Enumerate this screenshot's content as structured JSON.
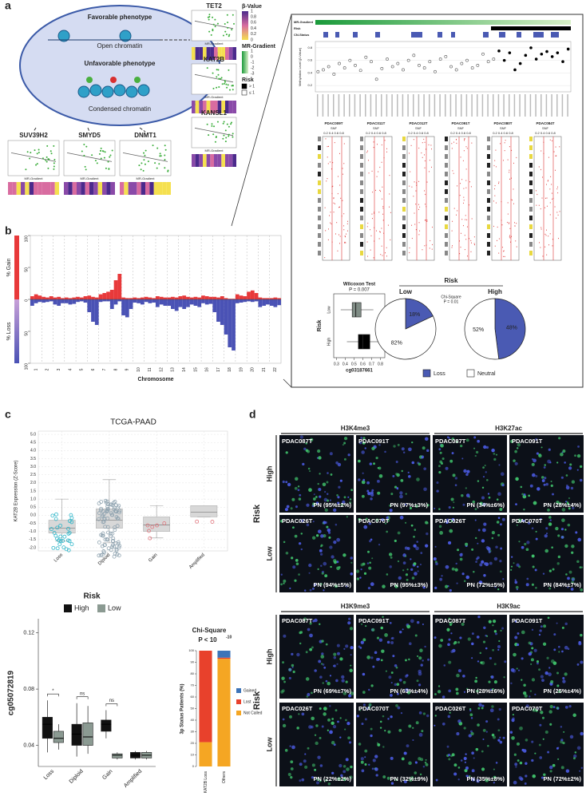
{
  "panel_a": {
    "label": "a",
    "favorable": "Favorable phenotype",
    "open": "Open chromatin",
    "unfavorable": "Unfavorable phenotype",
    "condensed": "Condensed chromatin",
    "genes_bottom": [
      "SUV39H2",
      "SMYD5",
      "DNMT1"
    ],
    "genes_right": [
      "TET2",
      "KAT2B",
      "KANSL1"
    ],
    "mini_xlabel": "MR-Gradient",
    "beta_title": "β-Value",
    "beta_ticks": [
      1,
      0.8,
      0.6,
      0.4,
      0.2,
      0
    ],
    "mr_title": "MR-Gradient",
    "mr_ticks": [
      1,
      0,
      -1,
      -2,
      -3
    ],
    "risk_title": "Risk",
    "risk_items": [
      "> 1",
      "≤ 1"
    ]
  },
  "panel_a_right": {
    "tracks": [
      "MR-Gradient",
      "Risk",
      "CN-Status"
    ],
    "meth_ylabel": "Methylation Level (β-Value)",
    "meth_ylim": [
      0.1,
      0.9
    ],
    "meth_yticks": [
      0.8,
      0.6,
      0.4,
      0.2
    ],
    "methylation_low": [
      0.42,
      0.45,
      0.5,
      0.38,
      0.55,
      0.48,
      0.6,
      0.52,
      0.44,
      0.65,
      0.58,
      0.3,
      0.47,
      0.62,
      0.5,
      0.55,
      0.45,
      0.6,
      0.68,
      0.52,
      0.48,
      0.58,
      0.42,
      0.62,
      0.66,
      0.5,
      0.45,
      0.55,
      0.6,
      0.48,
      0.52,
      0.7,
      0.58,
      0.62
    ],
    "methylation_high": [
      0.75,
      0.6,
      0.72,
      0.45,
      0.55,
      0.68,
      0.8,
      0.62,
      0.7,
      0.74,
      0.66,
      0.72,
      0.58,
      0.78
    ],
    "igv_samples": [
      "PDAC009T",
      "PDAC011T",
      "PDAC012T",
      "PDAC091T",
      "PDAC080T",
      "PDAC084T"
    ],
    "igv_sub": "SNF",
    "igv_axis": "0.2 0.4 0.6 0.8"
  },
  "wilcoxon": {
    "title": "Wilcoxon Test",
    "p": "P = 0.007",
    "ylabel": "Risk",
    "categories": [
      "Low",
      "High"
    ],
    "xlabel": "cg03187661",
    "xlim": [
      0.27,
      0.85
    ],
    "xticks": [
      0.3,
      0.4,
      0.5,
      0.6,
      0.7,
      0.8
    ],
    "boxes": [
      [
        0.35,
        0.48,
        0.52,
        0.58,
        0.72
      ],
      [
        0.42,
        0.55,
        0.6,
        0.68,
        0.82
      ]
    ],
    "colors": [
      "#7f8c85",
      "#000000"
    ]
  },
  "pies": {
    "title": "Risk",
    "chi": "Chi-Square",
    "p": "P = 0.01",
    "groups": [
      {
        "name": "Low",
        "values": [
          18,
          82
        ],
        "value_labels": [
          "18%",
          "82%"
        ]
      },
      {
        "name": "High",
        "values": [
          48,
          52
        ],
        "value_labels": [
          "48%",
          "52%"
        ]
      }
    ],
    "series_names": [
      "Loss",
      "Neutral"
    ],
    "colors": [
      "#4a5ab3",
      "#ffffff"
    ]
  },
  "panel_b": {
    "label": "b",
    "ylabel_gain": "% Gain",
    "ylabel_loss": "% Loss",
    "xlabel": "Chromosome",
    "chromosomes": [
      1,
      2,
      3,
      4,
      5,
      6,
      7,
      8,
      9,
      10,
      11,
      12,
      13,
      14,
      15,
      16,
      17,
      18,
      19,
      20,
      21,
      22
    ],
    "ylim": [
      -100,
      100
    ],
    "yticks": [
      100,
      50,
      0,
      {
        "value": -50,
        "label": "50"
      },
      {
        "value": -100,
        "label": "100"
      }
    ],
    "gain": [
      5,
      8,
      6,
      4,
      3,
      5,
      3,
      4,
      2,
      3,
      2,
      3,
      4,
      3,
      5,
      6,
      4,
      3,
      8,
      10,
      12,
      15,
      30,
      40,
      3,
      2,
      2,
      3,
      2,
      3,
      4,
      3,
      2,
      5,
      4,
      3,
      3,
      4,
      3,
      5,
      6,
      4,
      3,
      4,
      3,
      6,
      5,
      4,
      4,
      3,
      5,
      2,
      1,
      1,
      8,
      6,
      5,
      12,
      14,
      10,
      3,
      2,
      2,
      2,
      3,
      2
    ],
    "loss": [
      -10,
      -6,
      -4,
      -5,
      -4,
      -3,
      -8,
      -10,
      -6,
      -6,
      -8,
      -7,
      -4,
      -3,
      -5,
      -20,
      -35,
      -40,
      -4,
      -3,
      -3,
      -15,
      -8,
      -3,
      -25,
      -28,
      -15,
      -5,
      -6,
      -8,
      -4,
      -6,
      -5,
      -12,
      -8,
      -10,
      -10,
      -15,
      -18,
      -12,
      -15,
      -12,
      -8,
      -10,
      -12,
      -6,
      -8,
      -7,
      -20,
      -35,
      -40,
      -55,
      -75,
      -80,
      -6,
      -5,
      -4,
      -3,
      -4,
      -3,
      -12,
      -10,
      -8,
      -10,
      -12,
      -9
    ],
    "gain_color": "#e8393a",
    "loss_color": "#4a52b5"
  },
  "panel_c_top": {
    "label": "c",
    "title": "TCGA-PAAD",
    "ylabel": "KAT2B Expression (Z-Score)",
    "categories": [
      "Loss",
      "Diploid",
      "Gain",
      "Amplified"
    ],
    "ylim": [
      -2.2,
      5.2
    ],
    "yticks": [
      {
        "value": 5,
        "label": "5.0"
      },
      4.5,
      {
        "value": 4,
        "label": "4.0"
      },
      3.5,
      {
        "value": 3,
        "label": "3.0"
      },
      2.5,
      {
        "value": 2,
        "label": "2.0"
      },
      1.5,
      {
        "value": 1,
        "label": "1.0"
      },
      0.5,
      {
        "value": 0,
        "label": "0.0"
      },
      -0.5,
      {
        "value": -1,
        "label": "-1.0"
      },
      -1.5,
      {
        "value": -2,
        "label": "-2.0"
      }
    ],
    "boxes": [
      [
        -1.6,
        -1.1,
        -0.8,
        -0.3,
        1.0
      ],
      [
        -1.7,
        -0.8,
        -0.3,
        0.4,
        2.2
      ],
      [
        -1.4,
        -1.0,
        -0.6,
        -0.1,
        0.6
      ],
      [
        -0.1,
        -0.1,
        0.2,
        0.6,
        0.6
      ]
    ],
    "point_colors": [
      "#2bb5c8",
      "#8fa3b0",
      "#e0727a",
      "#e0727a"
    ]
  },
  "panel_c_bottom": {
    "legend_title": "Risk",
    "ylabel": "cg05072819",
    "categories": [
      "Loss",
      "Diploid",
      "Gain",
      "Amplified"
    ],
    "ylim": [
      0.025,
      0.13
    ],
    "yticks": [
      0.04,
      0.08,
      0.12
    ],
    "series": [
      {
        "name": "High",
        "color": "#111111",
        "boxes": [
          [
            0.035,
            0.045,
            0.055,
            0.06,
            0.072
          ],
          [
            0.032,
            0.04,
            0.048,
            0.055,
            0.07
          ],
          [
            0.045,
            0.05,
            0.055,
            0.058,
            0.065
          ],
          [
            0.03,
            0.031,
            0.033,
            0.035,
            0.036
          ]
        ]
      },
      {
        "name": "Low",
        "color": "#8b9a92",
        "boxes": [
          [
            0.037,
            0.042,
            0.045,
            0.05,
            0.055
          ],
          [
            0.034,
            0.04,
            0.046,
            0.056,
            0.068
          ],
          [
            0.03,
            0.031,
            0.033,
            0.034,
            0.035
          ],
          [
            0.03,
            0.031,
            0.033,
            0.035,
            0.036
          ]
        ]
      }
    ],
    "significance": [
      "*",
      "ns",
      "ns"
    ]
  },
  "panel_c_stack": {
    "title": "Chi-Square",
    "p": "P < 10",
    "p_exp": "-10",
    "ylabel": "3p Status Patients (%)",
    "categories": [
      "KAT2B Loss",
      "Others"
    ],
    "ylim": [
      0,
      100
    ],
    "yticks": [
      0,
      10,
      20,
      30,
      40,
      50,
      60,
      70,
      80,
      90,
      100
    ],
    "series": [
      {
        "name": "Not Called",
        "color": "#f5a623",
        "values": [
          21,
          93
        ]
      },
      {
        "name": "Lost",
        "color": "#e8412c",
        "values": [
          79,
          1
        ]
      },
      {
        "name": "Gained",
        "color": "#3d74b8",
        "values": [
          0,
          6
        ]
      }
    ]
  },
  "panel_d": {
    "label": "d",
    "risk": "Risk",
    "rows": [
      "High",
      "Low"
    ],
    "samples": [
      [
        "PDAC087T",
        "PDAC091T"
      ],
      [
        "PDAC026T",
        "PDAC070T"
      ]
    ],
    "marks": [
      {
        "name": "H3K4me3",
        "pn": [
          [
            "PN (95%±2%)",
            "PN (97%±3%)"
          ],
          [
            "PN (94%±5%)",
            "PN (95%±3%)"
          ]
        ]
      },
      {
        "name": "H3K27ac",
        "pn": [
          [
            "PN (34%±6%)",
            "PN (28%±4%)"
          ],
          [
            "PN (72%±5%)",
            "PN (84%±7%)"
          ]
        ]
      },
      {
        "name": "H3K9me3",
        "pn": [
          [
            "PN (69%±7%)",
            "PN (63%±4%)"
          ],
          [
            "PN (22%±2%)",
            "PN (32%±9%)"
          ]
        ]
      },
      {
        "name": "H3K9ac",
        "pn": [
          [
            "PN (28%±6%)",
            "PN (25%±4%)"
          ],
          [
            "PN (35%±8%)",
            "PN (72%±2%)"
          ]
        ]
      }
    ]
  }
}
